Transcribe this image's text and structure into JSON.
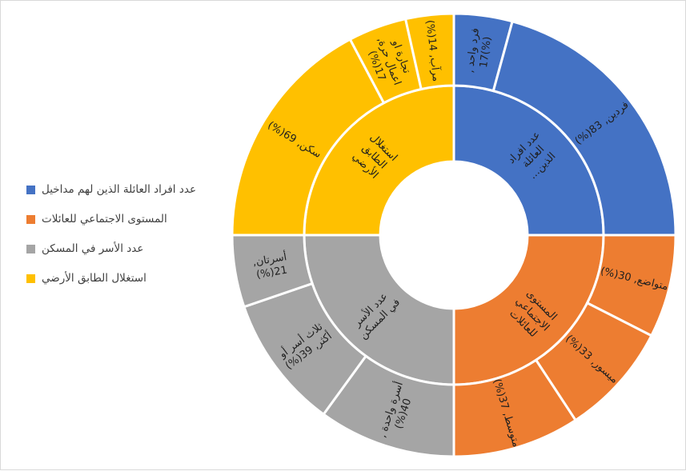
{
  "chart_data": {
    "type": "sunburst",
    "title": "",
    "legend_position": "left",
    "categories": [
      {
        "name": "عدد افراد العائلة الذين لهم مداخيل",
        "inner_label": "عدد افراد العائلة الذين...",
        "color": "#4472C4",
        "children": [
          {
            "label": "فرد واحد , (%)17",
            "value": 17
          },
          {
            "label": "فردين, 83(%)",
            "value": 83
          }
        ]
      },
      {
        "name": "المستوى الاجتماعي للعائلات",
        "inner_label": "المستوى الاجتماعي للعائلات",
        "color": "#ED7D31",
        "children": [
          {
            "label": "متواضع, 30(%)",
            "value": 30
          },
          {
            "label": "ميسور, 33(%)",
            "value": 33
          },
          {
            "label": "متوسط, 37(%)",
            "value": 37
          }
        ]
      },
      {
        "name": "عدد الأسر في المسكن",
        "inner_label": "عدد الأسر في المسكن",
        "color": "#A5A5A5",
        "children": [
          {
            "label": "أسرة واحدة , 40(%)",
            "value": 40
          },
          {
            "label": "ثلاث أسر أو أكثر, 39(%)",
            "value": 39
          },
          {
            "label": "أسرتان, 21(%)",
            "value": 21
          }
        ]
      },
      {
        "name": "استغلال الطابق الأرضي",
        "inner_label": "استغلال الطابق الأرضي",
        "color": "#FFC000",
        "children": [
          {
            "label": "سكن, 69(%)",
            "value": 69
          },
          {
            "label": "تجارة او اعمال حرة, 17(%)",
            "value": 17
          },
          {
            "label": "مرآب, 14(%)",
            "value": 14
          }
        ]
      }
    ]
  },
  "legend": {
    "items": [
      {
        "label": "عدد افراد العائلة الذين لهم مداخيل",
        "color": "#4472C4"
      },
      {
        "label": "المستوى الاجتماعي للعائلات",
        "color": "#ED7D31"
      },
      {
        "label": "عدد الأسر في المسكن",
        "color": "#A5A5A5"
      },
      {
        "label": "استغلال الطابق الأرضي",
        "color": "#FFC000"
      }
    ]
  }
}
